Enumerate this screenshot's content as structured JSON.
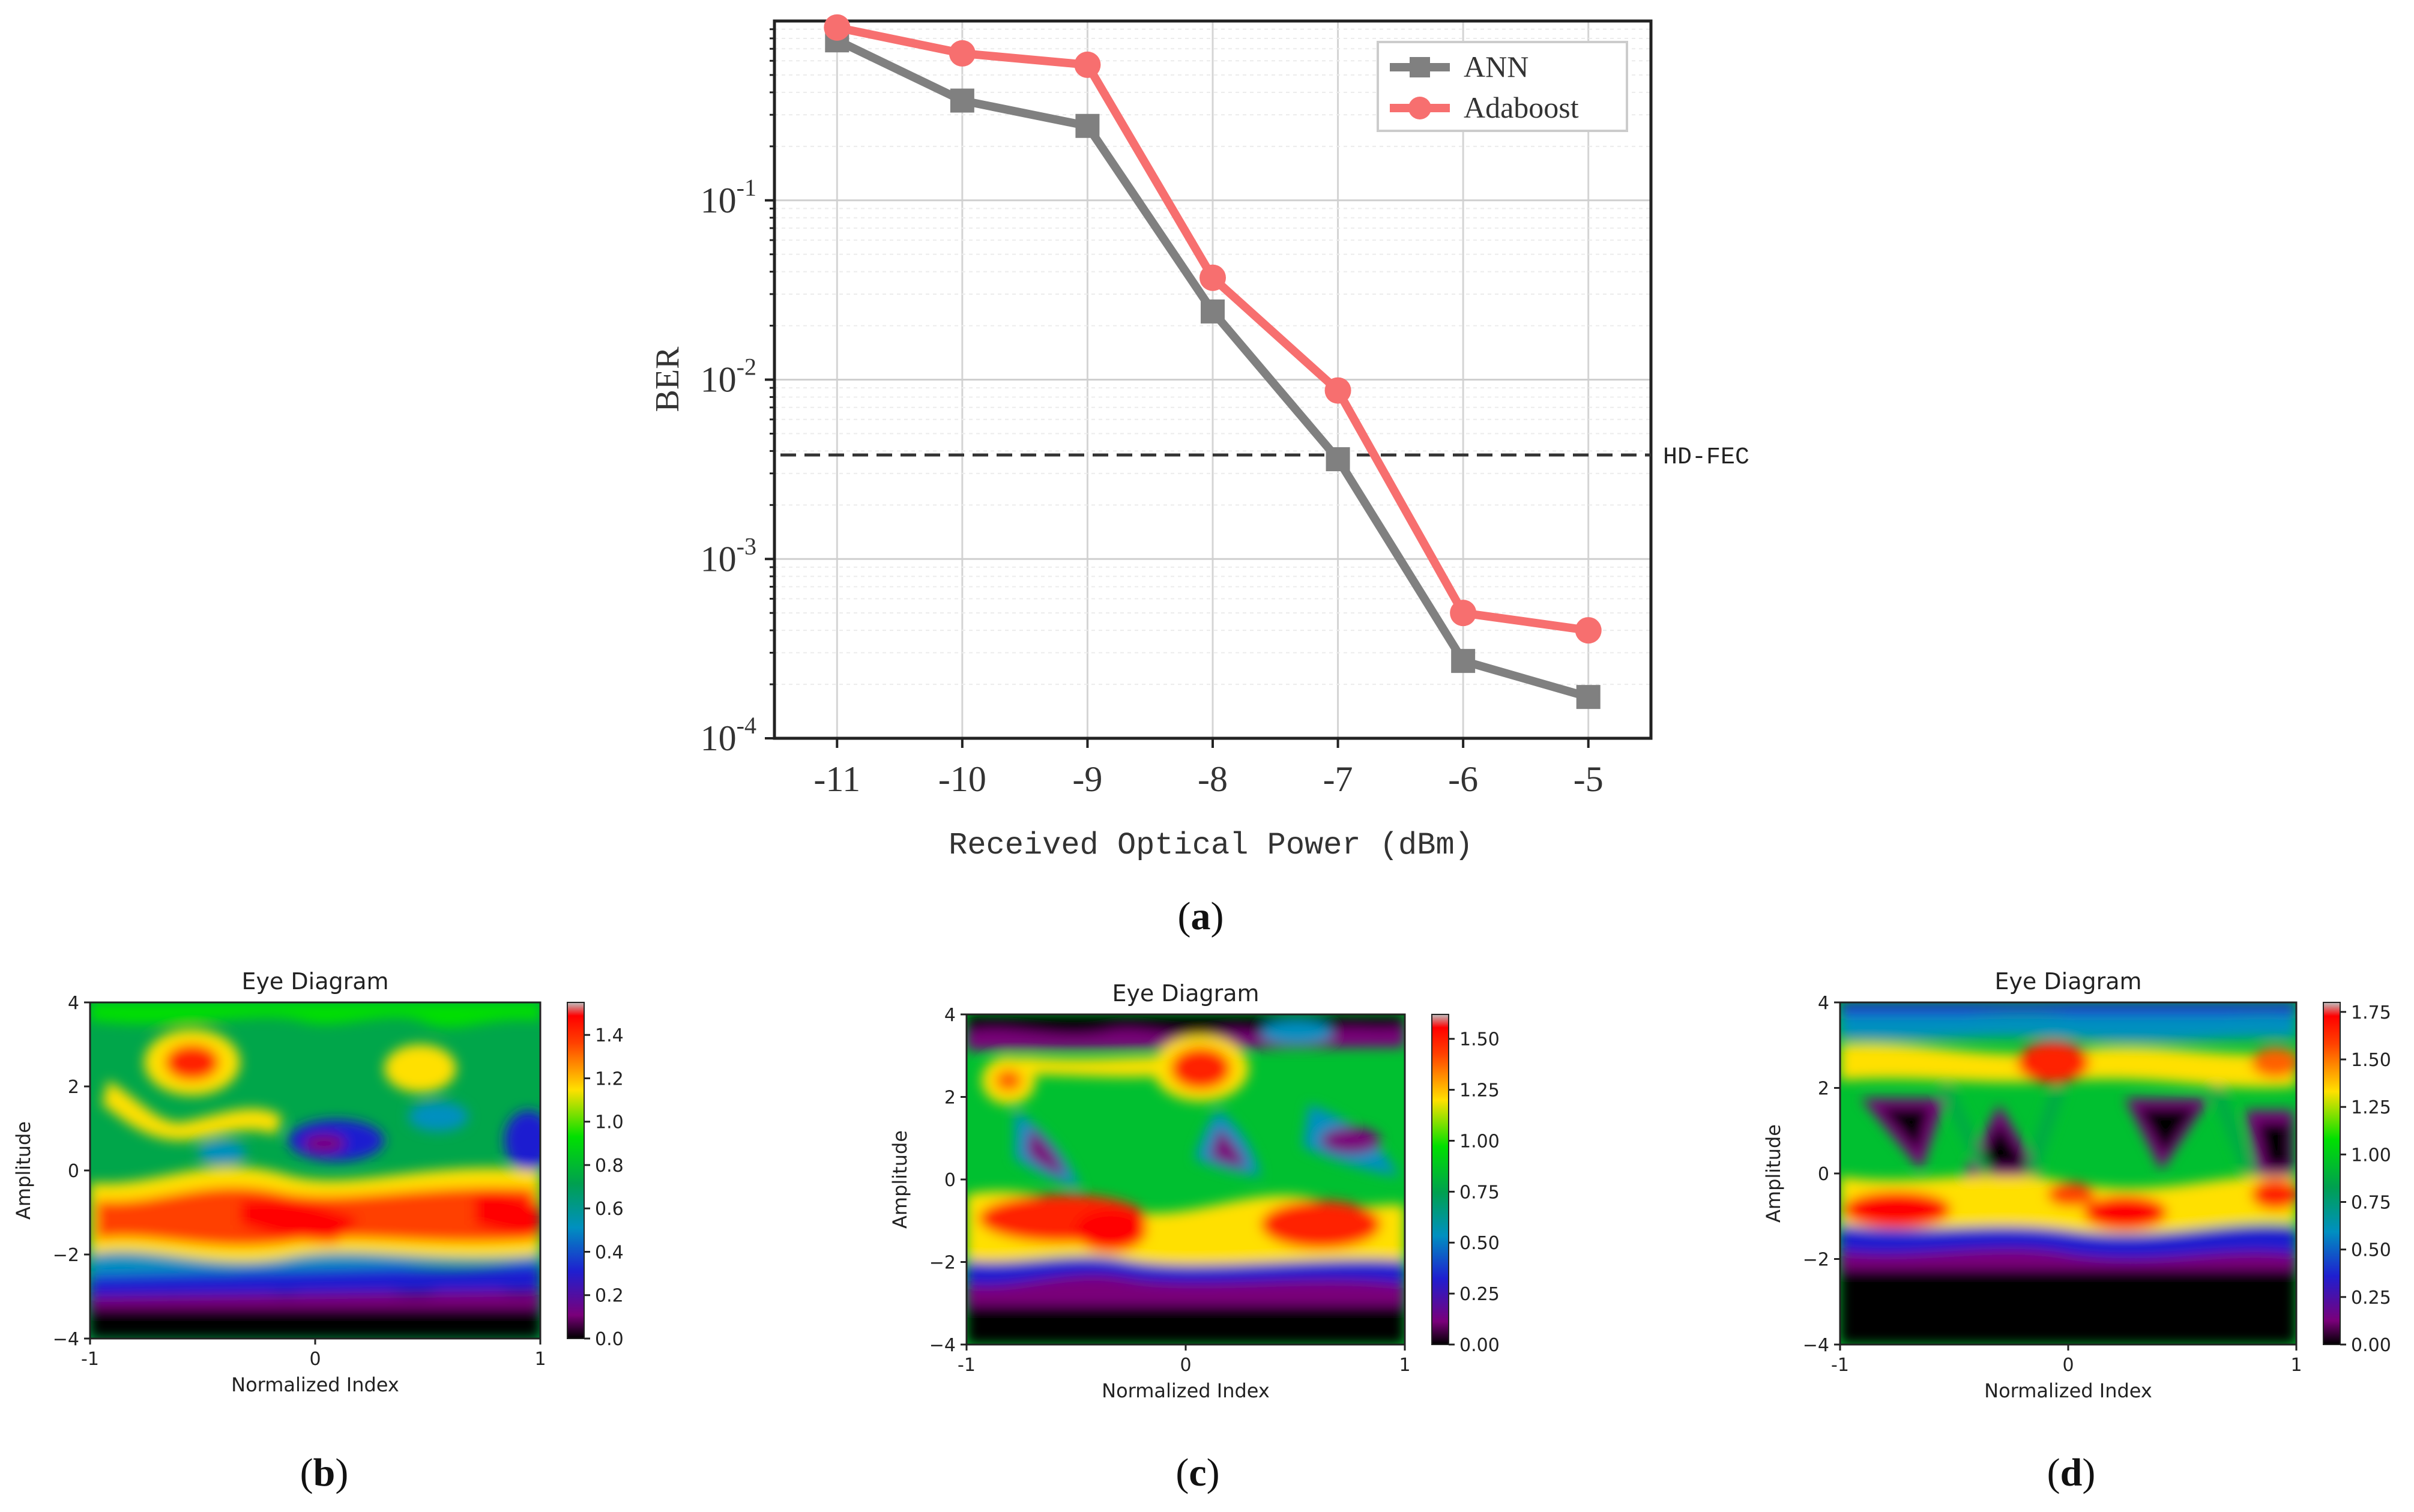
{
  "chart_data": [
    {
      "id": "a",
      "type": "line",
      "panel_label": "a",
      "title": "",
      "xlabel": "Received Optical Power (dBm)",
      "ylabel": "BER",
      "yscale": "log",
      "xlim": [
        -11.5,
        -4.5
      ],
      "ylim": [
        0.0001,
        1
      ],
      "categories": [
        "-11",
        "-10",
        "-9",
        "-8",
        "-7",
        "-6",
        "-5"
      ],
      "x": [
        -11,
        -10,
        -9,
        -8,
        -7,
        -6,
        -5
      ],
      "y_tick_labels": [
        {
          "base": "10",
          "exp": "-1",
          "value": 0.1
        },
        {
          "base": "10",
          "exp": "-2",
          "value": 0.01
        },
        {
          "base": "10",
          "exp": "-3",
          "value": 0.001
        },
        {
          "base": "10",
          "exp": "-4",
          "value": 0.0001
        }
      ],
      "series": [
        {
          "name": "ANN",
          "color": "#808080",
          "marker": "square",
          "values": [
            0.78,
            0.36,
            0.26,
            0.024,
            0.0036,
            0.00027,
            0.00017
          ]
        },
        {
          "name": "Adaboost",
          "color": "#f76f6f",
          "marker": "circle",
          "values": [
            0.92,
            0.66,
            0.57,
            0.037,
            0.0087,
            0.0005,
            0.0004
          ]
        }
      ],
      "threshold": {
        "label": "HD-FEC",
        "value": 0.0038,
        "style": "dashed"
      },
      "legend": "top-right",
      "grid": true
    },
    {
      "id": "b",
      "type": "heatmap",
      "panel_label": "b",
      "title": "Eye Diagram",
      "xlabel": "Normalized Index",
      "ylabel": "Amplitude",
      "xlim": [
        -1,
        1
      ],
      "ylim": [
        -4,
        4
      ],
      "x_ticks": [
        "-1",
        "0",
        "1"
      ],
      "y_ticks": [
        "4",
        "2",
        "0",
        "−2",
        "−4"
      ],
      "colorbar": {
        "min": 0,
        "max": 1.55,
        "ticks": [
          "1.4",
          "1.2",
          "1.0",
          "0.8",
          "0.6",
          "0.4",
          "0.2",
          "0.0"
        ]
      }
    },
    {
      "id": "c",
      "type": "heatmap",
      "panel_label": "c",
      "title": "Eye Diagram",
      "xlabel": "Normalized Index",
      "ylabel": "Amplitude",
      "xlim": [
        -1,
        1
      ],
      "ylim": [
        -4,
        4
      ],
      "x_ticks": [
        "-1",
        "0",
        "1"
      ],
      "y_ticks": [
        "4",
        "2",
        "0",
        "−2",
        "−4"
      ],
      "colorbar": {
        "min": 0,
        "max": 1.62,
        "ticks": [
          "1.50",
          "1.25",
          "1.00",
          "0.75",
          "0.50",
          "0.25",
          "0.00"
        ]
      }
    },
    {
      "id": "d",
      "type": "heatmap",
      "panel_label": "d",
      "title": "Eye Diagram",
      "xlabel": "Normalized Index",
      "ylabel": "Amplitude",
      "xlim": [
        -1,
        1
      ],
      "ylim": [
        -4,
        4
      ],
      "x_ticks": [
        "-1",
        "0",
        "1"
      ],
      "y_ticks": [
        "4",
        "2",
        "0",
        "−2",
        "−4"
      ],
      "colorbar": {
        "min": 0,
        "max": 1.8,
        "ticks": [
          "1.75",
          "1.50",
          "1.25",
          "1.00",
          "0.75",
          "0.50",
          "0.25",
          "0.00"
        ]
      }
    }
  ]
}
